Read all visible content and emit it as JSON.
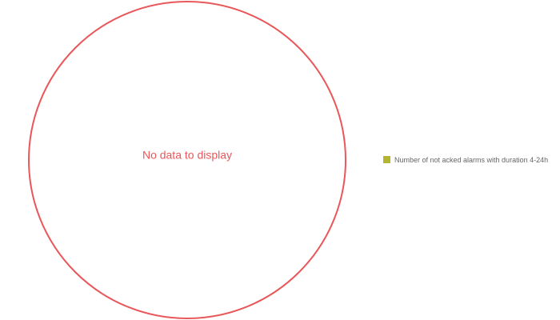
{
  "chart_data": {
    "type": "pie",
    "categories": [
      "Number of not acked alarms with duration 4-24h"
    ],
    "values": [
      null
    ],
    "colors": [
      "#b3b530"
    ],
    "no_data_text": "No data to display",
    "legend": "right"
  }
}
